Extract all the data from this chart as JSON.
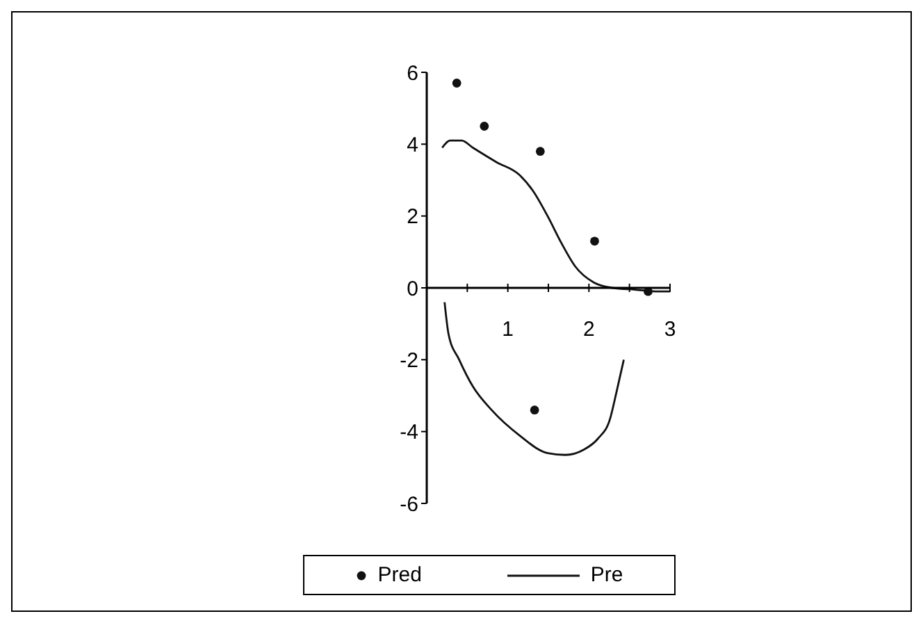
{
  "chart_data": {
    "type": "line",
    "series": [
      {
        "name": "Pred",
        "type": "scatter",
        "marker": "circle",
        "color": "#111111",
        "x": [
          0.37,
          0.71,
          1.4,
          2.07,
          2.73,
          1.33
        ],
        "values": [
          5.7,
          4.5,
          3.8,
          1.3,
          -0.1,
          -3.4
        ]
      },
      {
        "name": "Pre",
        "color": "#111111",
        "x": [
          0.19,
          0.29,
          0.43,
          0.57,
          0.86,
          1.14,
          1.31,
          1.49,
          1.66,
          1.83,
          2.06,
          2.29,
          2.57,
          2.86,
          3.0
        ],
        "values": [
          3.9,
          4.1,
          4.1,
          3.9,
          3.5,
          3.15,
          2.7,
          2.0,
          1.25,
          0.6,
          0.15,
          0,
          -0.05,
          -0.1,
          -0.1
        ]
      },
      {
        "color": "#111111",
        "x": [
          0.22,
          0.27,
          0.4,
          0.57,
          0.8,
          1.14,
          1.49,
          1.71,
          1.94,
          2.11,
          2.26,
          2.34,
          2.43
        ],
        "values": [
          -0.4,
          -1.3,
          -2.0,
          -2.75,
          -3.4,
          -4.1,
          -4.6,
          -4.65,
          -4.5,
          -4.2,
          -3.65,
          -2.9,
          -2.0
        ]
      }
    ],
    "xlim": [
      0,
      3
    ],
    "xticks": [
      {
        "value": 0,
        "label": null
      },
      {
        "value": 0.5,
        "label": null
      },
      1,
      {
        "value": 1.5,
        "label": null
      },
      2,
      {
        "value": 2.5,
        "label": null
      },
      3
    ],
    "ylim": [
      -6,
      6
    ],
    "yticks": [
      -6,
      -4,
      -2,
      0,
      2,
      4,
      6
    ],
    "grid": false,
    "legend": "bottom",
    "line_style": "solid"
  }
}
